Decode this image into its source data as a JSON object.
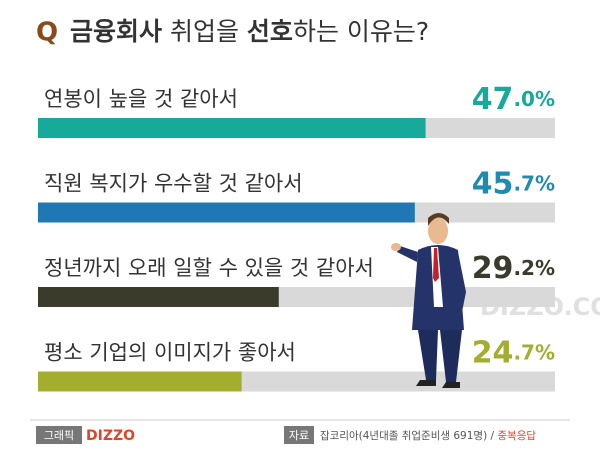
{
  "chart_data": {
    "type": "bar",
    "title_marker": "Q",
    "title_parts": [
      "금융회사",
      " 취업을 ",
      "선호",
      "하는 이유는?"
    ],
    "categories": [
      "연봉이 높을 것 같아서",
      "직원 복지가 우수할 것 같아서",
      "정년까지 오래 일할 수 있을 것 같아서",
      "평소 기업의 이미지가 좋아서"
    ],
    "values": [
      47.0,
      45.7,
      29.2,
      24.7
    ],
    "value_labels": [
      "47.0%",
      "45.7%",
      "29.2%",
      "24.7%"
    ],
    "colors": [
      "#17a99a",
      "#1f78b4",
      "#3b3b2c",
      "#a3ad2e"
    ],
    "label_colors": [
      "#17a99a",
      "#1f8bb0",
      "#3b3b2c",
      "#a3ad2e"
    ],
    "xlim": [
      0,
      62.7
    ],
    "watermark": "DIZZO.COM",
    "footer": {
      "graphic_tag": "그래픽",
      "brand": "DIZZO",
      "source_tag": "자료",
      "source": "잡코리아(4년대졸 취업준비생 691명) / ",
      "note": "중복응답"
    }
  }
}
